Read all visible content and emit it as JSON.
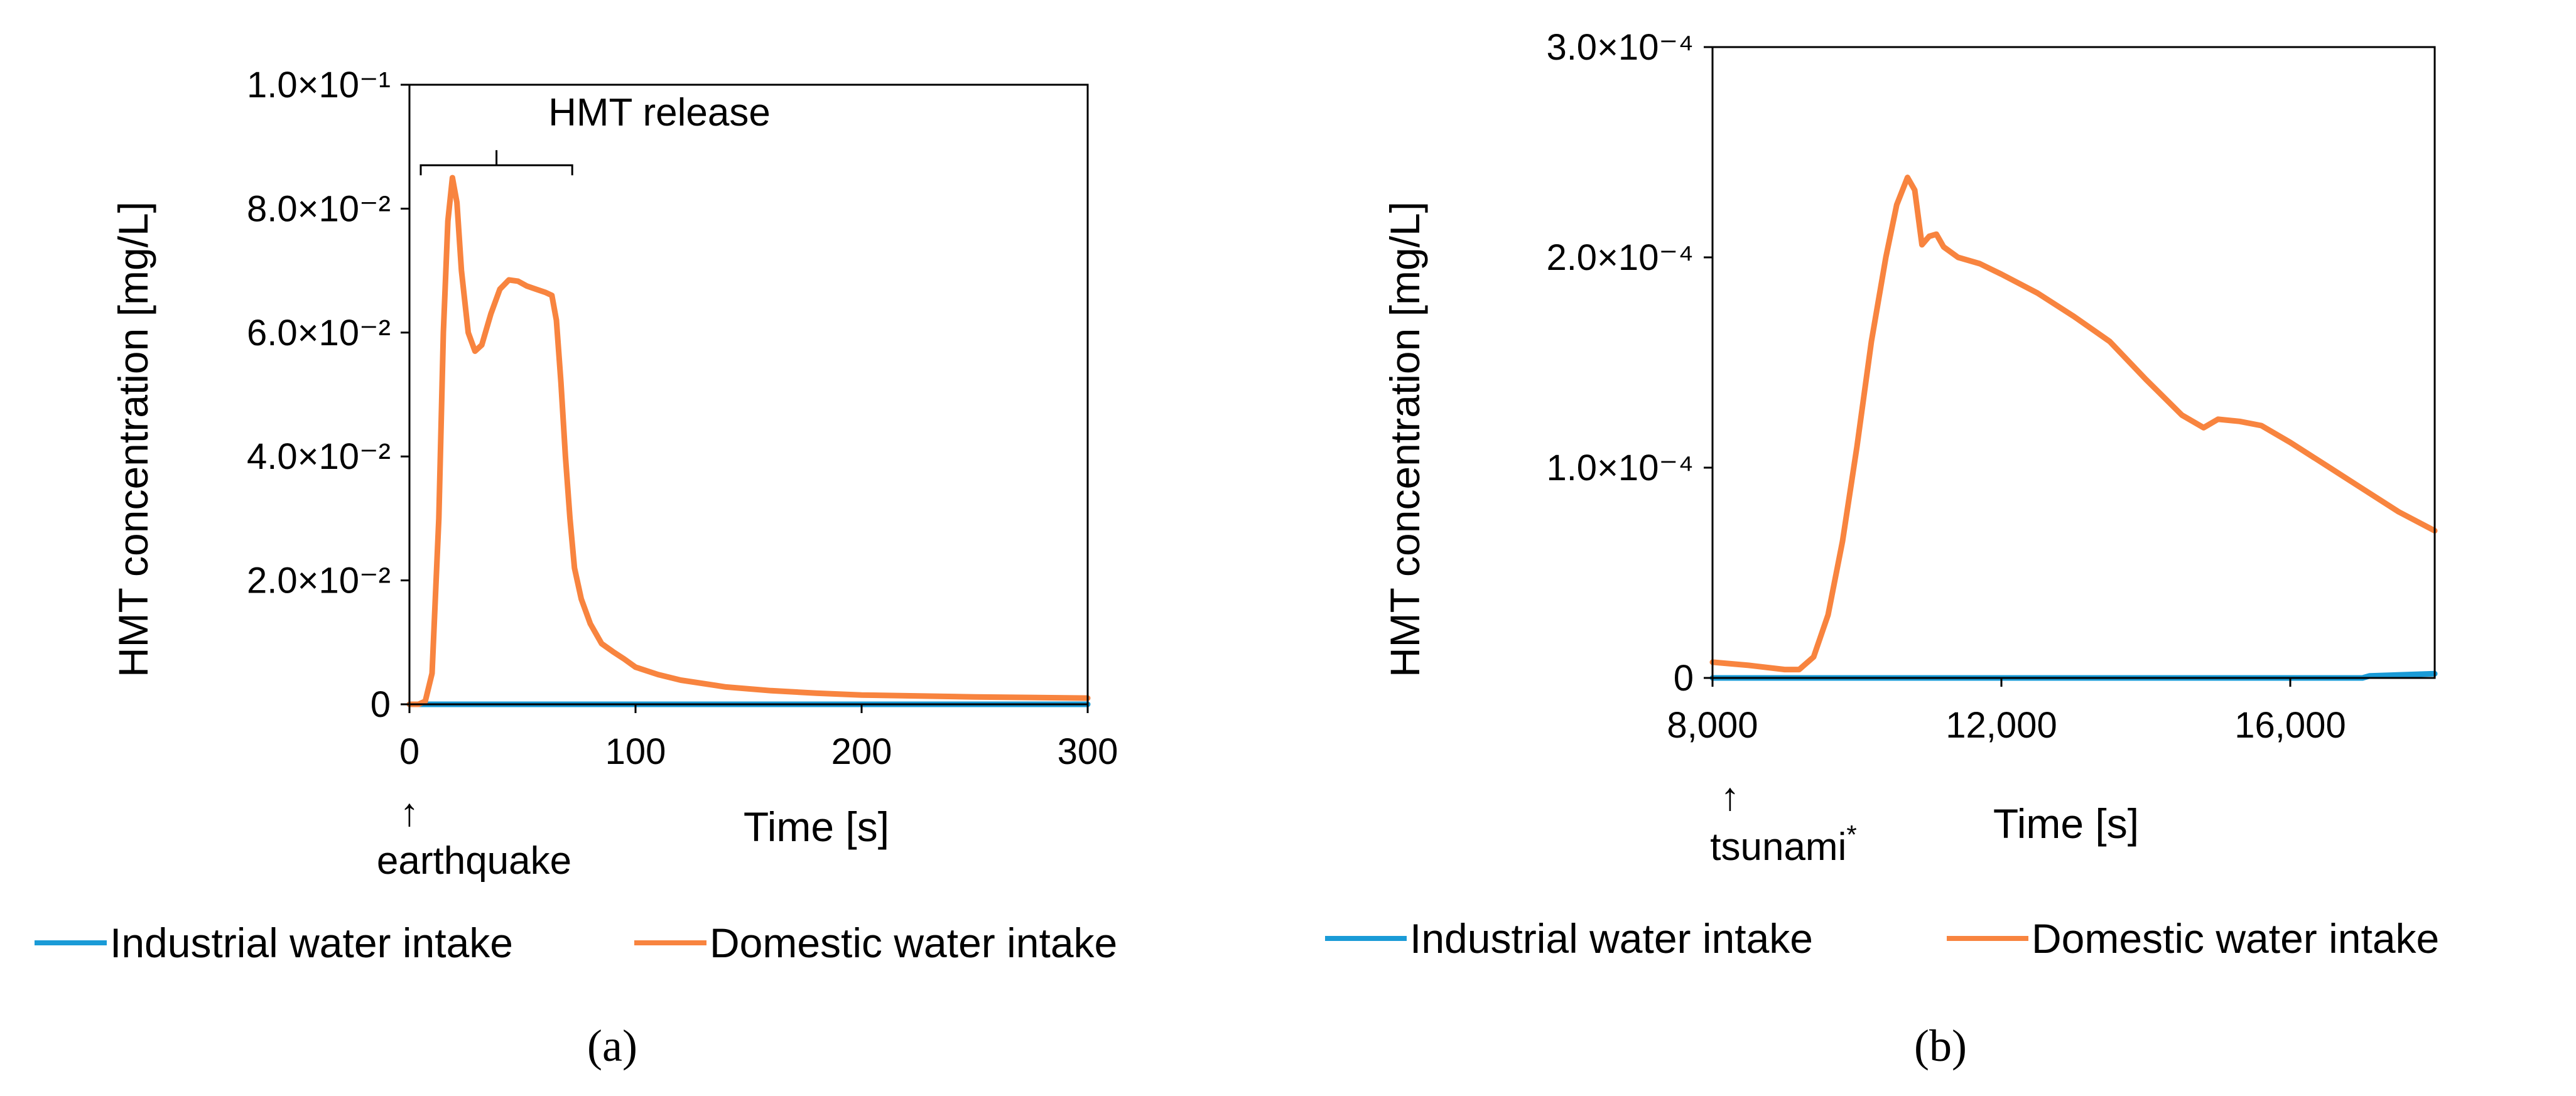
{
  "chart_data": [
    {
      "type": "line",
      "panel_caption": "(a)",
      "xlabel": "Time [s]",
      "ylabel": "HMT concentration [mg/L]",
      "xlim": [
        0,
        300
      ],
      "ylim": [
        0,
        0.1
      ],
      "x_ticks": [
        0,
        100,
        200,
        300
      ],
      "x_tick_labels": [
        "0",
        "100",
        "200",
        "300"
      ],
      "y_ticks": [
        0,
        0.02,
        0.04,
        0.06,
        0.08,
        0.1
      ],
      "y_tick_labels": [
        "0",
        "2.0×10⁻²",
        "4.0×10⁻²",
        "6.0×10⁻²",
        "8.0×10⁻²",
        "1.0×10⁻¹"
      ],
      "grid": false,
      "legend": "bottom",
      "annotations": {
        "event_arrow": "↑",
        "event_label": "earthquake",
        "event_x": 0,
        "release_label": "HMT  release",
        "release_start": 5,
        "release_end": 72,
        "release_level": 0.087
      },
      "series": [
        {
          "name": "Industrial water intake",
          "color": "#1a9bd7",
          "x": [
            0,
            300
          ],
          "y": [
            0,
            0
          ]
        },
        {
          "name": "Domestic water intake",
          "color": "#f8843f",
          "x": [
            0,
            4,
            7,
            10,
            13,
            15,
            17,
            19,
            21,
            23,
            26,
            29,
            32,
            36,
            40,
            44,
            48,
            52,
            56,
            60,
            63,
            65,
            67,
            69,
            71,
            73,
            76,
            80,
            85,
            90,
            95,
            100,
            110,
            120,
            140,
            160,
            180,
            200,
            250,
            300
          ],
          "y": [
            0,
            0,
            0.0005,
            0.005,
            0.03,
            0.06,
            0.078,
            0.085,
            0.081,
            0.07,
            0.06,
            0.057,
            0.058,
            0.063,
            0.067,
            0.0685,
            0.0683,
            0.0675,
            0.067,
            0.0665,
            0.066,
            0.062,
            0.052,
            0.04,
            0.03,
            0.022,
            0.017,
            0.013,
            0.0098,
            0.0085,
            0.0073,
            0.006,
            0.0048,
            0.0039,
            0.0028,
            0.0022,
            0.0018,
            0.0015,
            0.0012,
            0.001
          ]
        }
      ]
    },
    {
      "type": "line",
      "panel_caption": "(b)",
      "xlabel": "Time [s]",
      "ylabel": "HMT concentration [mg/L]",
      "xlim": [
        8000,
        18000
      ],
      "ylim": [
        0,
        0.0003
      ],
      "x_ticks": [
        8000,
        12000,
        16000
      ],
      "x_tick_labels": [
        "8,000",
        "12,000",
        "16,000"
      ],
      "y_ticks": [
        0,
        0.0001,
        0.0002,
        0.0003
      ],
      "y_tick_labels": [
        "0",
        "1.0×10⁻⁴",
        "2.0×10⁻⁴",
        "3.0×10⁻⁴"
      ],
      "grid": false,
      "legend": "bottom",
      "annotations": {
        "event_arrow": "↑",
        "event_label": "tsunami",
        "event_label_sup": "*",
        "event_x": 8000
      },
      "series": [
        {
          "name": "Industrial water intake",
          "color": "#1a9bd7",
          "x": [
            8000,
            17000,
            17100,
            18000
          ],
          "y": [
            0,
            0,
            1e-06,
            2e-06
          ]
        },
        {
          "name": "Domestic water intake",
          "color": "#f8843f",
          "x": [
            8000,
            8500,
            9000,
            9200,
            9400,
            9600,
            9800,
            10000,
            10200,
            10400,
            10550,
            10700,
            10800,
            10900,
            11000,
            11100,
            11200,
            11400,
            11700,
            12000,
            12500,
            13000,
            13500,
            14000,
            14500,
            14800,
            15000,
            15300,
            15600,
            16000,
            16500,
            17000,
            17500,
            18000
          ],
          "y": [
            7.5e-06,
            6e-06,
            4e-06,
            4e-06,
            1e-05,
            3e-05,
            6.5e-05,
            0.00011,
            0.00016,
            0.0002,
            0.000225,
            0.000238,
            0.000232,
            0.000206,
            0.00021,
            0.000211,
            0.000205,
            0.0002,
            0.000197,
            0.000192,
            0.000183,
            0.000172,
            0.00016,
            0.000142,
            0.000125,
            0.000119,
            0.000123,
            0.000122,
            0.00012,
            0.000112,
            0.000101,
            9e-05,
            7.9e-05,
            7e-05
          ]
        }
      ]
    }
  ]
}
